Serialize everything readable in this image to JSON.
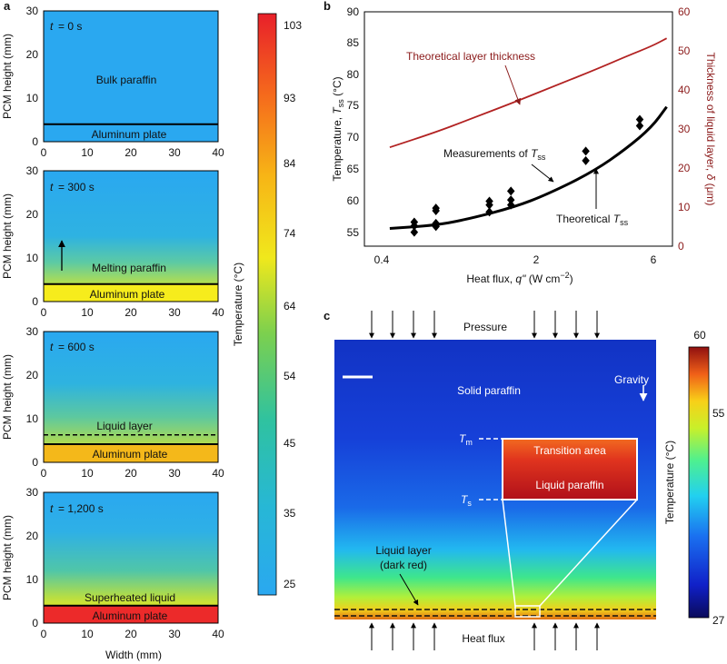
{
  "figure": {
    "panel_a": {
      "letter": "a",
      "ylabel": "PCM height (mm)",
      "xlabel": "Width (mm)",
      "xticks": [
        "0",
        "10",
        "20",
        "30",
        "40"
      ],
      "yticks": [
        "0",
        "10",
        "20",
        "30"
      ],
      "subpanels": [
        {
          "t_prefix": "t",
          "t_value": "= 0 s",
          "label": "Bulk paraffin",
          "plate_label": "Aluminum plate"
        },
        {
          "t_prefix": "t",
          "t_value": "= 300 s",
          "label": "Melting paraffin",
          "plate_label": "Aluminum plate"
        },
        {
          "t_prefix": "t",
          "t_value": "= 600 s",
          "label": "Liquid layer",
          "plate_label": "Aluminum plate"
        },
        {
          "t_prefix": "t",
          "t_value": "= 1,200 s",
          "label": "Superheated liquid",
          "plate_label": "Aluminum plate"
        }
      ],
      "colorbar": {
        "label": "Temperature (°C)",
        "ticks": [
          "103",
          "93",
          "84",
          "74",
          "64",
          "54",
          "45",
          "35",
          "25"
        ]
      }
    },
    "panel_b": {
      "letter": "b",
      "annotations": {
        "layer": "Theoretical layer thickness",
        "measured_prefix": "Measurements of",
        "measured_sym": "T",
        "measured_sub": "ss",
        "theory_prefix": "Theoretical",
        "theory_sym": "T",
        "theory_sub": "ss"
      },
      "ylabel_left_prefix": "Temperature,",
      "ylabel_left_sym": "T",
      "ylabel_left_sub": "ss",
      "ylabel_left_suffix": "(°C)",
      "ylabel_right_prefix": "Thickness of liquid layer,",
      "ylabel_right_sym": "δ",
      "ylabel_right_suffix": "(μm)",
      "xlabel_prefix": "Heat flux,",
      "xlabel_sym": "q\"",
      "xlabel_units": "(W cm",
      "xlabel_exp": "−2",
      "xlabel_close": ")",
      "yticks_left": [
        "55",
        "60",
        "65",
        "70",
        "75",
        "80",
        "85",
        "90"
      ],
      "yticks_right": [
        "0",
        "10",
        "20",
        "30",
        "40",
        "50",
        "60"
      ],
      "xticks": [
        "0.4",
        "2",
        "6"
      ],
      "colors": {
        "theory": "#000000",
        "layer": "#b22222",
        "right_axis": "#8b1a1a"
      }
    },
    "panel_c": {
      "letter": "c",
      "pressure": "Pressure",
      "heat_flux": "Heat flux",
      "gravity": "Gravity",
      "solid": "Solid paraffin",
      "transition": "Transition area",
      "liquid": "Liquid paraffin",
      "tm_sym": "T",
      "tm_sub": "m",
      "ts_sym": "T",
      "ts_sub": "s",
      "liquid_layer_1": "Liquid layer",
      "liquid_layer_2": "(dark red)",
      "colorbar": {
        "label": "Temperature (°C)",
        "ticks": [
          "60",
          "55",
          "27"
        ]
      }
    }
  },
  "chart_data": [
    {
      "type": "heatmap",
      "panel": "a",
      "xlabel": "Width (mm)",
      "ylabel": "PCM height (mm)",
      "xlim": [
        0,
        40
      ],
      "ylim": [
        0,
        30
      ],
      "color_scale": {
        "label": "Temperature (°C)",
        "min": 25,
        "max": 103,
        "colormap": "jet"
      },
      "frames": [
        {
          "time_s": 0,
          "plate_top_mm": 4,
          "surface_temp_c": 25
        },
        {
          "time_s": 300,
          "plate_top_mm": 4,
          "surface_temp_c": 64,
          "warm_front_mm": 12
        },
        {
          "time_s": 600,
          "plate_top_mm": 4,
          "liquid_layer_top_mm": 6.3,
          "warm_front_mm": 16
        },
        {
          "time_s": 1200,
          "plate_top_mm": 4,
          "surface_temp_c": 103,
          "warm_front_mm": 22
        }
      ]
    },
    {
      "type": "scatter",
      "panel": "b",
      "xscale": "log",
      "xlim": [
        0.4,
        6
      ],
      "ylim": [
        53,
        90
      ],
      "ylim_right": [
        0,
        60
      ],
      "series": [
        {
          "name": "Measurements of Tss",
          "kind": "scatter",
          "points": [
            [
              0.62,
              55.2
            ],
            [
              0.62,
              56.2
            ],
            [
              0.62,
              56.8
            ],
            [
              0.75,
              56.1
            ],
            [
              0.75,
              56.6
            ],
            [
              0.75,
              58.6
            ],
            [
              0.75,
              59.0
            ],
            [
              1.2,
              58.4
            ],
            [
              1.2,
              59.5
            ],
            [
              1.2,
              60.1
            ],
            [
              1.45,
              59.5
            ],
            [
              1.45,
              60.3
            ],
            [
              1.45,
              61.7
            ],
            [
              2.8,
              66.5
            ],
            [
              2.8,
              68.0
            ],
            [
              4.5,
              72.0
            ],
            [
              4.5,
              73.0
            ]
          ]
        },
        {
          "name": "Theoretical Tss",
          "kind": "line",
          "points": [
            [
              0.5,
              55.8
            ],
            [
              0.75,
              56.3
            ],
            [
              1.0,
              57.3
            ],
            [
              1.5,
              59.2
            ],
            [
              2.0,
              61.2
            ],
            [
              3.0,
              64.8
            ],
            [
              4.0,
              68.4
            ],
            [
              5.0,
              71.8
            ],
            [
              5.7,
              75.0
            ]
          ]
        },
        {
          "name": "Theoretical layer thickness",
          "kind": "line",
          "axis": "right",
          "points": [
            [
              0.5,
              25.3
            ],
            [
              0.75,
              29.2
            ],
            [
              1.0,
              32.4
            ],
            [
              1.5,
              36.9
            ],
            [
              2.0,
              40.3
            ],
            [
              3.0,
              45.0
            ],
            [
              4.0,
              48.6
            ],
            [
              5.0,
              51.2
            ],
            [
              5.7,
              53.2
            ]
          ]
        }
      ]
    },
    {
      "type": "heatmap",
      "panel": "c",
      "color_scale": {
        "label": "Temperature (°C)",
        "min": 27,
        "max": 60,
        "colormap": "jet"
      }
    }
  ]
}
